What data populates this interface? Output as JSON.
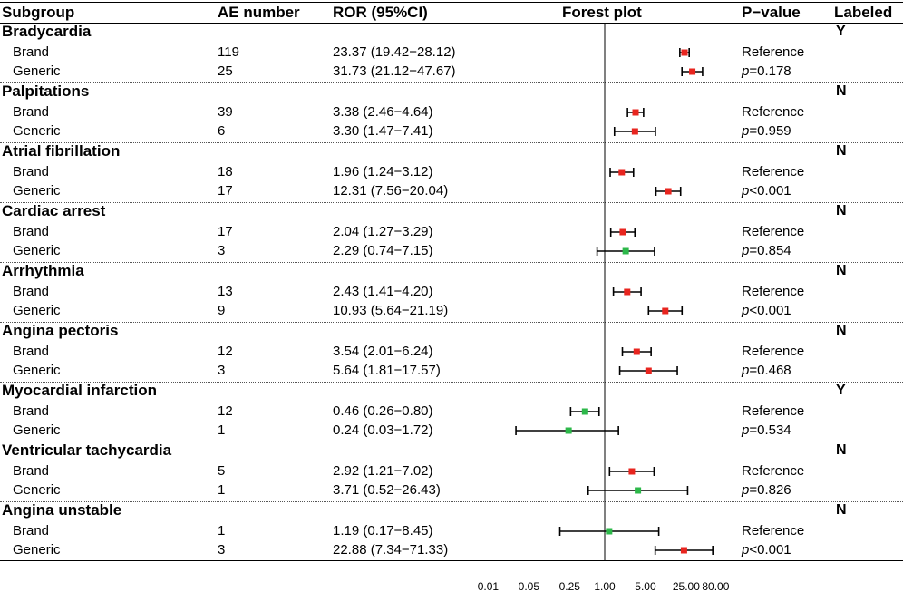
{
  "headers": {
    "subgroup": "Subgroup",
    "ae_number": "AE number",
    "ror": "ROR (95%CI)",
    "forest": "Forest plot",
    "pvalue": "P−value",
    "labeled": "Labeled"
  },
  "groups": [
    {
      "name": "Bradycardia",
      "labeled": "Y",
      "rows": [
        {
          "type": "Brand",
          "ae": "119",
          "ror_text": "23.37 (19.42−28.12)",
          "ror": 23.37,
          "lo": 19.42,
          "hi": 28.12,
          "color": "red",
          "p_prefix": "",
          "p_value": "Reference"
        },
        {
          "type": "Generic",
          "ae": "25",
          "ror_text": "31.73 (21.12−47.67)",
          "ror": 31.73,
          "lo": 21.12,
          "hi": 47.67,
          "color": "red",
          "p_prefix": "p",
          "p_value": "=0.178"
        }
      ]
    },
    {
      "name": "Palpitations",
      "labeled": "N",
      "rows": [
        {
          "type": "Brand",
          "ae": "39",
          "ror_text": "3.38 (2.46−4.64)",
          "ror": 3.38,
          "lo": 2.46,
          "hi": 4.64,
          "color": "red",
          "p_prefix": "",
          "p_value": "Reference"
        },
        {
          "type": "Generic",
          "ae": "6",
          "ror_text": "3.30 (1.47−7.41)",
          "ror": 3.3,
          "lo": 1.47,
          "hi": 7.41,
          "color": "red",
          "p_prefix": "p",
          "p_value": "=0.959"
        }
      ]
    },
    {
      "name": "Atrial fibrillation",
      "labeled": "N",
      "rows": [
        {
          "type": "Brand",
          "ae": "18",
          "ror_text": "1.96 (1.24−3.12)",
          "ror": 1.96,
          "lo": 1.24,
          "hi": 3.12,
          "color": "red",
          "p_prefix": "",
          "p_value": "Reference"
        },
        {
          "type": "Generic",
          "ae": "17",
          "ror_text": "12.31 (7.56−20.04)",
          "ror": 12.31,
          "lo": 7.56,
          "hi": 20.04,
          "color": "red",
          "p_prefix": "p",
          "p_value": "<0.001"
        }
      ]
    },
    {
      "name": "Cardiac arrest",
      "labeled": "N",
      "rows": [
        {
          "type": "Brand",
          "ae": "17",
          "ror_text": "2.04 (1.27−3.29)",
          "ror": 2.04,
          "lo": 1.27,
          "hi": 3.29,
          "color": "red",
          "p_prefix": "",
          "p_value": "Reference"
        },
        {
          "type": "Generic",
          "ae": "3",
          "ror_text": "2.29 (0.74−7.15)",
          "ror": 2.29,
          "lo": 0.74,
          "hi": 7.15,
          "color": "green",
          "p_prefix": "p",
          "p_value": "=0.854"
        }
      ]
    },
    {
      "name": "Arrhythmia",
      "labeled": "N",
      "rows": [
        {
          "type": "Brand",
          "ae": "13",
          "ror_text": "2.43 (1.41−4.20)",
          "ror": 2.43,
          "lo": 1.41,
          "hi": 4.2,
          "color": "red",
          "p_prefix": "",
          "p_value": "Reference"
        },
        {
          "type": "Generic",
          "ae": "9",
          "ror_text": "10.93 (5.64−21.19)",
          "ror": 10.93,
          "lo": 5.64,
          "hi": 21.19,
          "color": "red",
          "p_prefix": "p",
          "p_value": "<0.001"
        }
      ]
    },
    {
      "name": "Angina pectoris",
      "labeled": "N",
      "rows": [
        {
          "type": "Brand",
          "ae": "12",
          "ror_text": "3.54 (2.01−6.24)",
          "ror": 3.54,
          "lo": 2.01,
          "hi": 6.24,
          "color": "red",
          "p_prefix": "",
          "p_value": "Reference"
        },
        {
          "type": "Generic",
          "ae": "3",
          "ror_text": "5.64 (1.81−17.57)",
          "ror": 5.64,
          "lo": 1.81,
          "hi": 17.57,
          "color": "red",
          "p_prefix": "p",
          "p_value": "=0.468"
        }
      ]
    },
    {
      "name": "Myocardial infarction",
      "labeled": "Y",
      "rows": [
        {
          "type": "Brand",
          "ae": "12",
          "ror_text": "0.46 (0.26−0.80)",
          "ror": 0.46,
          "lo": 0.26,
          "hi": 0.8,
          "color": "green",
          "p_prefix": "",
          "p_value": "Reference"
        },
        {
          "type": "Generic",
          "ae": "1",
          "ror_text": "0.24 (0.03−1.72)",
          "ror": 0.24,
          "lo": 0.03,
          "hi": 1.72,
          "color": "green",
          "p_prefix": "p",
          "p_value": "=0.534"
        }
      ]
    },
    {
      "name": "Ventricular tachycardia",
      "labeled": "N",
      "rows": [
        {
          "type": "Brand",
          "ae": "5",
          "ror_text": "2.92 (1.21−7.02)",
          "ror": 2.92,
          "lo": 1.21,
          "hi": 7.02,
          "color": "red",
          "p_prefix": "",
          "p_value": "Reference"
        },
        {
          "type": "Generic",
          "ae": "1",
          "ror_text": "3.71 (0.52−26.43)",
          "ror": 3.71,
          "lo": 0.52,
          "hi": 26.43,
          "color": "green",
          "p_prefix": "p",
          "p_value": "=0.826"
        }
      ]
    },
    {
      "name": "Angina unstable",
      "labeled": "N",
      "rows": [
        {
          "type": "Brand",
          "ae": "1",
          "ror_text": "1.19 (0.17−8.45)",
          "ror": 1.19,
          "lo": 0.17,
          "hi": 8.45,
          "color": "green",
          "p_prefix": "",
          "p_value": "Reference"
        },
        {
          "type": "Generic",
          "ae": "3",
          "ror_text": "22.88 (7.34−71.33)",
          "ror": 22.88,
          "lo": 7.34,
          "hi": 71.33,
          "color": "red",
          "p_prefix": "p",
          "p_value": "<0.001"
        }
      ]
    }
  ],
  "axis_ticks": [
    "0.01",
    "0.05",
    "0.25",
    "1.00",
    "5.00",
    "25.00",
    "80.00"
  ],
  "colors": {
    "red": "#e8251f",
    "green": "#2db84a",
    "line": "#000000"
  },
  "chart_data": {
    "type": "forest",
    "title": "Forest plot",
    "xscale": "log",
    "xlim": [
      0.01,
      80
    ],
    "reference_line": 1,
    "xticks": [
      0.01,
      0.05,
      0.25,
      1,
      5,
      25,
      80
    ]
  }
}
